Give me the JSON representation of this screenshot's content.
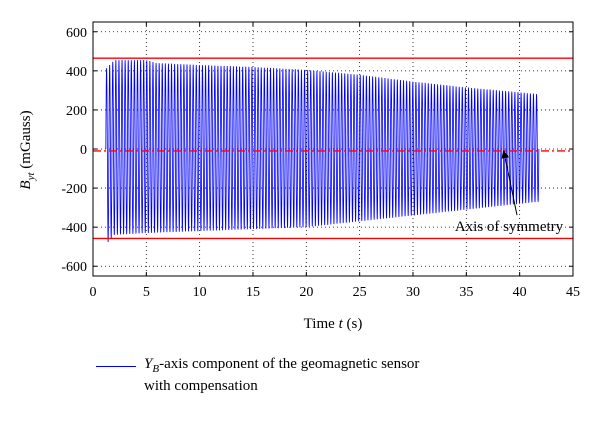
{
  "chart_data": {
    "type": "line",
    "xlabel_prefix": "Time ",
    "xlabel_var": "t",
    "xlabel_suffix": " (s)",
    "ylabel_var": "B",
    "ylabel_sub": "yt",
    "ylabel_suffix": " (mGauss)",
    "xlim": [
      0,
      45
    ],
    "ylim": [
      -650,
      650
    ],
    "x_ticks": [
      0,
      5,
      10,
      15,
      20,
      25,
      30,
      35,
      40,
      45
    ],
    "y_ticks": [
      -600,
      -400,
      -200,
      0,
      200,
      400,
      600
    ],
    "grid": true,
    "grid_style": "dotted",
    "signal": {
      "name": "Y_B-axis component of the geomagnetic sensor with compensation",
      "color": "#0000ff",
      "x_start": 1.2,
      "x_end": 41.8,
      "approx_cycles": 140,
      "envelope_upper": [
        [
          1.2,
          410
        ],
        [
          2,
          455
        ],
        [
          5,
          455
        ],
        [
          6,
          440
        ],
        [
          10,
          430
        ],
        [
          15,
          420
        ],
        [
          20,
          405
        ],
        [
          25,
          380
        ],
        [
          30,
          345
        ],
        [
          35,
          315
        ],
        [
          40,
          290
        ],
        [
          41.8,
          280
        ]
      ],
      "envelope_lower": [
        [
          1.2,
          -490
        ],
        [
          2,
          -440
        ],
        [
          5,
          -430
        ],
        [
          10,
          -420
        ],
        [
          15,
          -410
        ],
        [
          20,
          -400
        ],
        [
          25,
          -370
        ],
        [
          30,
          -340
        ],
        [
          35,
          -310
        ],
        [
          40,
          -280
        ],
        [
          41.8,
          -270
        ]
      ]
    },
    "reference_lines": [
      {
        "type": "upper_bound",
        "y": 465,
        "color": "#ff0000",
        "style": "solid"
      },
      {
        "type": "lower_bound",
        "y": -458,
        "color": "#ff0000",
        "style": "solid"
      },
      {
        "type": "symmetry_axis",
        "y": -10,
        "color": "#ff0000",
        "style": "dash-dot"
      }
    ],
    "annotations": [
      {
        "text": "Axis of symmetry",
        "x": 39,
        "y": -400,
        "arrow_to_x": 38.5,
        "arrow_to_y": 0
      }
    ]
  },
  "legend": {
    "var": "Y",
    "sub": "B",
    "text_line1": "-axis component of the geomagnetic sensor",
    "text_line2": "with compensation"
  }
}
